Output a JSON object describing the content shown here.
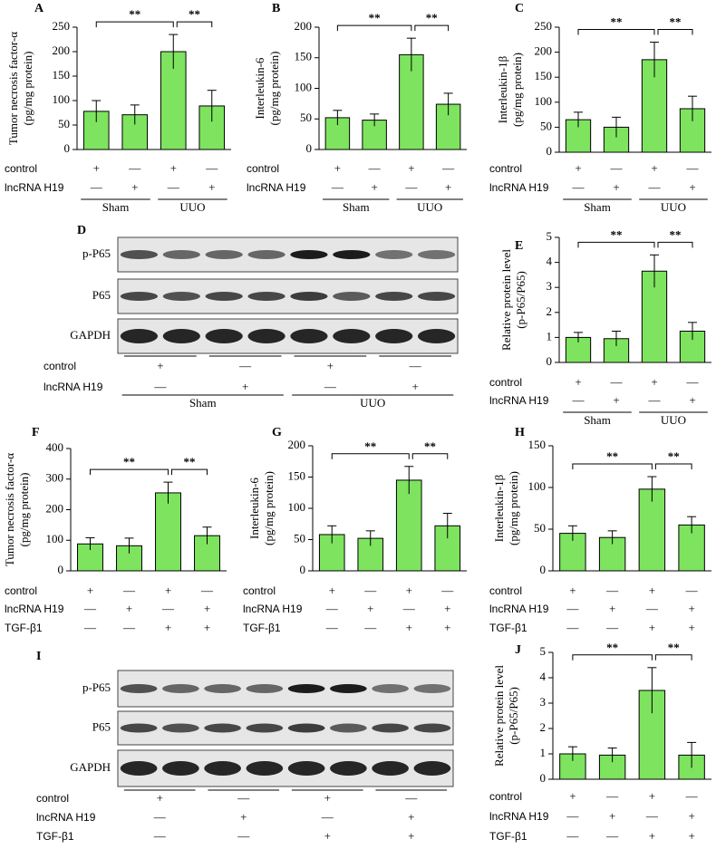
{
  "chart_data": [
    {
      "type": "bar",
      "panel": "A",
      "ylabel": [
        "Tumor necrosis factor-α",
        "(pg/mg protein)"
      ],
      "values": [
        78,
        71,
        200,
        89
      ],
      "errors": [
        22,
        20,
        35,
        32
      ],
      "color": "#7ee35f",
      "ylim": [
        0,
        250
      ],
      "yticks": [
        0,
        50,
        100,
        150,
        200,
        250
      ],
      "annotations": [
        "**",
        "**"
      ],
      "conditions": [
        {
          "label": "control",
          "signs": [
            "+",
            "—",
            "+",
            "—"
          ]
        },
        {
          "label": "lncRNA H19",
          "signs": [
            "—",
            "+",
            "—",
            "+"
          ]
        }
      ],
      "groups": [
        "Sham",
        "UUO"
      ]
    },
    {
      "type": "bar",
      "panel": "B",
      "ylabel": [
        "Interleukin-6",
        "(pg/mg protein)"
      ],
      "values": [
        52,
        48,
        155,
        74
      ],
      "errors": [
        12,
        10,
        27,
        18
      ],
      "color": "#7ee35f",
      "ylim": [
        0,
        200
      ],
      "yticks": [
        0,
        50,
        100,
        150,
        200
      ],
      "annotations": [
        "**",
        "**"
      ],
      "conditions": [
        {
          "label": "control",
          "signs": [
            "+",
            "—",
            "+",
            "—"
          ]
        },
        {
          "label": "lncRNA H19",
          "signs": [
            "—",
            "+",
            "—",
            "+"
          ]
        }
      ],
      "groups": [
        "Sham",
        "UUO"
      ]
    },
    {
      "type": "bar",
      "panel": "C",
      "ylabel": [
        "Interleukin-1β",
        "(pg/mg protein)"
      ],
      "values": [
        65,
        50,
        185,
        87
      ],
      "errors": [
        15,
        20,
        35,
        25
      ],
      "color": "#7ee35f",
      "ylim": [
        0,
        250
      ],
      "yticks": [
        0,
        50,
        100,
        150,
        200,
        250
      ],
      "annotations": [
        "**",
        "**"
      ],
      "conditions": [
        {
          "label": "control",
          "signs": [
            "+",
            "—",
            "+",
            "—"
          ]
        },
        {
          "label": "lncRNA H19",
          "signs": [
            "—",
            "+",
            "—",
            "+"
          ]
        }
      ],
      "groups": [
        "Sham",
        "UUO"
      ]
    },
    {
      "type": "bar",
      "panel": "E",
      "ylabel": [
        "Relative protein level",
        "(p-P65/P65)"
      ],
      "values": [
        1.0,
        0.95,
        3.65,
        1.25
      ],
      "errors": [
        0.2,
        0.3,
        0.65,
        0.35
      ],
      "color": "#7ee35f",
      "ylim": [
        0,
        5
      ],
      "yticks": [
        0,
        1,
        2,
        3,
        4,
        5
      ],
      "annotations": [
        "**",
        "**"
      ],
      "conditions": [
        {
          "label": "control",
          "signs": [
            "+",
            "—",
            "+",
            "—"
          ]
        },
        {
          "label": "lncRNA H19",
          "signs": [
            "—",
            "+",
            "—",
            "+"
          ]
        }
      ],
      "groups": [
        "Sham",
        "UUO"
      ]
    },
    {
      "type": "bar",
      "panel": "F",
      "ylabel": [
        "Tumor necrosis factor-α",
        "(pg/mg protein)"
      ],
      "values": [
        88,
        82,
        255,
        115
      ],
      "errors": [
        20,
        25,
        35,
        28
      ],
      "color": "#7ee35f",
      "ylim": [
        0,
        400
      ],
      "yticks": [
        0,
        100,
        200,
        300,
        400
      ],
      "annotations": [
        "**",
        "**"
      ],
      "conditions": [
        {
          "label": "control",
          "signs": [
            "+",
            "—",
            "+",
            "—"
          ]
        },
        {
          "label": "lncRNA H19",
          "signs": [
            "—",
            "+",
            "—",
            "+"
          ]
        },
        {
          "label": "TGF-β1",
          "signs": [
            "—",
            "—",
            "+",
            "+"
          ]
        }
      ]
    },
    {
      "type": "bar",
      "panel": "G",
      "ylabel": [
        "Interleukin-6",
        "(pg/mg protein)"
      ],
      "values": [
        58,
        52,
        145,
        72
      ],
      "errors": [
        14,
        12,
        22,
        20
      ],
      "color": "#7ee35f",
      "ylim": [
        0,
        200
      ],
      "yticks": [
        0,
        50,
        100,
        150,
        200
      ],
      "annotations": [
        "**",
        "**"
      ],
      "conditions": [
        {
          "label": "control",
          "signs": [
            "+",
            "—",
            "+",
            "—"
          ]
        },
        {
          "label": "lncRNA H19",
          "signs": [
            "—",
            "+",
            "—",
            "+"
          ]
        },
        {
          "label": "TGF-β1",
          "signs": [
            "—",
            "—",
            "+",
            "+"
          ]
        }
      ]
    },
    {
      "type": "bar",
      "panel": "H",
      "ylabel": [
        "Interleukin-1β",
        "(pg/mg protein)"
      ],
      "values": [
        45,
        40,
        98,
        55
      ],
      "errors": [
        9,
        8,
        15,
        10
      ],
      "color": "#7ee35f",
      "ylim": [
        0,
        150
      ],
      "yticks": [
        0,
        50,
        100,
        150
      ],
      "annotations": [
        "**",
        "**"
      ],
      "conditions": [
        {
          "label": "control",
          "signs": [
            "+",
            "—",
            "+",
            "—"
          ]
        },
        {
          "label": "lncRNA H19",
          "signs": [
            "—",
            "+",
            "—",
            "+"
          ]
        },
        {
          "label": "TGF-β1",
          "signs": [
            "—",
            "—",
            "+",
            "+"
          ]
        }
      ]
    },
    {
      "type": "bar",
      "panel": "J",
      "ylabel": [
        "Relative protein level",
        "(p-P65/P65)"
      ],
      "values": [
        1.0,
        0.95,
        3.5,
        0.95
      ],
      "errors": [
        0.28,
        0.28,
        0.9,
        0.5
      ],
      "color": "#7ee35f",
      "ylim": [
        0,
        5
      ],
      "yticks": [
        0,
        1,
        2,
        3,
        4,
        5
      ],
      "annotations": [
        "**",
        "**"
      ],
      "conditions": [
        {
          "label": "control",
          "signs": [
            "+",
            "—",
            "+",
            "—"
          ]
        },
        {
          "label": "lncRNA H19",
          "signs": [
            "—",
            "+",
            "—",
            "+"
          ]
        },
        {
          "label": "TGF-β1",
          "signs": [
            "—",
            "—",
            "+",
            "+"
          ]
        }
      ]
    }
  ],
  "blots": [
    {
      "panel": "D",
      "bands": [
        "p-P65",
        "P65",
        "GAPDH"
      ],
      "conditions": [
        {
          "label": "control",
          "signs": [
            "+",
            "—",
            "+",
            "—"
          ]
        },
        {
          "label": "lncRNA H19",
          "signs": [
            "—",
            "+",
            "—",
            "+"
          ]
        }
      ],
      "groups": [
        "Sham",
        "UUO"
      ]
    },
    {
      "panel": "I",
      "bands": [
        "p-P65",
        "P65",
        "GAPDH"
      ],
      "conditions": [
        {
          "label": "control",
          "signs": [
            "+",
            "—",
            "+",
            "—"
          ]
        },
        {
          "label": "lncRNA H19",
          "signs": [
            "—",
            "+",
            "—",
            "+"
          ]
        },
        {
          "label": "TGF-β1",
          "signs": [
            "—",
            "—",
            "+",
            "+"
          ]
        }
      ]
    }
  ]
}
